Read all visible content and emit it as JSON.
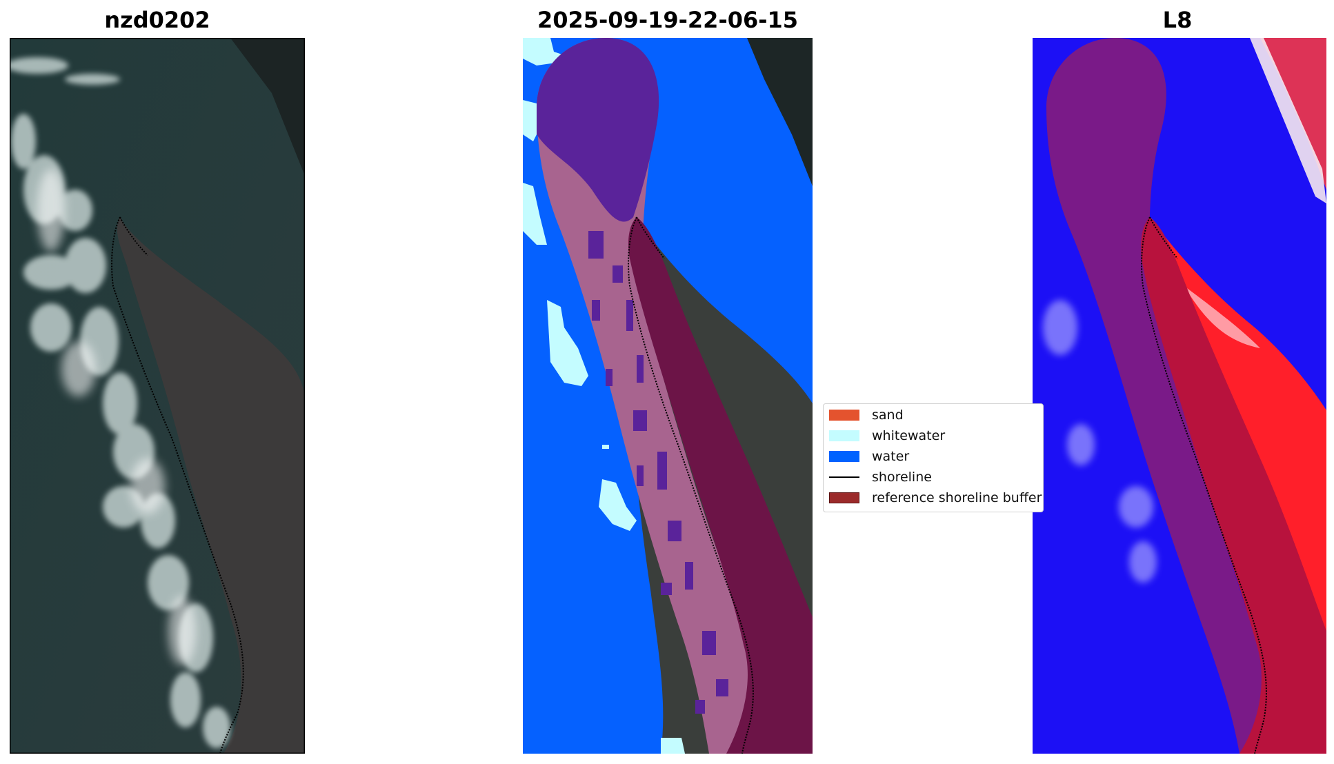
{
  "titles": {
    "rgb": "nzd0202",
    "classified": "2025-09-19-22-06-15",
    "index": "L8"
  },
  "legend": {
    "items": [
      {
        "label": "sand",
        "color": "#e4532e",
        "kind": "patch"
      },
      {
        "label": "whitewater",
        "color": "#c4fcff",
        "kind": "patch"
      },
      {
        "label": "water",
        "color": "#0062ff",
        "kind": "patch"
      },
      {
        "label": "shoreline",
        "color": "#000000",
        "kind": "line"
      },
      {
        "label": "reference shoreline buffer",
        "color": "#9b2a2a",
        "kind": "patch"
      }
    ]
  },
  "colors": {
    "water": "#0561ff",
    "whitewater": "#c4fcff",
    "land": "#363e3a",
    "sea": "#243636",
    "buffer_blue": "#5a239a",
    "buffer_pink": "#a8648f",
    "buffer_dark": "#6c1447",
    "index_blue": "#1c10f5",
    "index_red": "#ff1f2a"
  }
}
